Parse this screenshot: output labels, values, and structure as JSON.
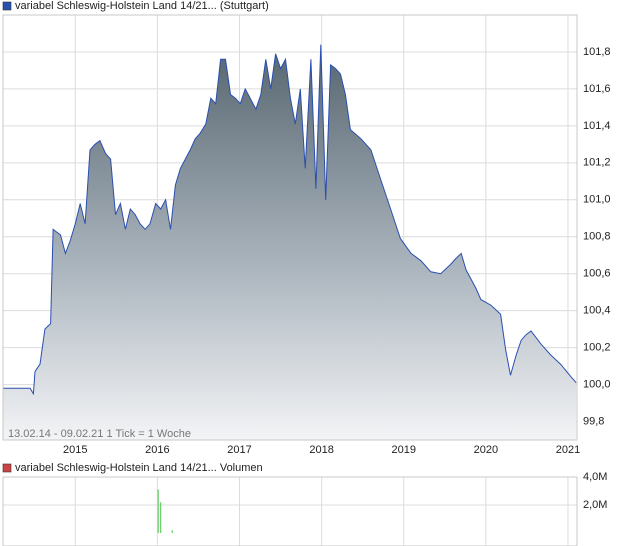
{
  "chart_data": [
    {
      "type": "area",
      "note": "13.02.14 - 09.02.21   1 Tick = 1 Woche",
      "xlim": [
        2014.12,
        2021.11
      ],
      "xticks": [
        2015,
        2016,
        2017,
        2018,
        2019,
        2020,
        2021
      ],
      "ylim": [
        99.7,
        102.0
      ],
      "yticks": [
        {
          "value": 99.8,
          "label": "99,8"
        },
        {
          "value": 100.0,
          "label": "100,0"
        },
        {
          "value": 100.2,
          "label": "100,2"
        },
        {
          "value": 100.4,
          "label": "100,4"
        },
        {
          "value": 100.6,
          "label": "100,6"
        },
        {
          "value": 100.8,
          "label": "100,8"
        },
        {
          "value": 101.0,
          "label": "101,0"
        },
        {
          "value": 101.2,
          "label": "101,2"
        },
        {
          "value": 101.4,
          "label": "101,4"
        },
        {
          "value": 101.6,
          "label": "101,6"
        },
        {
          "value": 101.8,
          "label": "101,8"
        }
      ],
      "grid": true,
      "series": [
        {
          "name": "variabel Schleswig-Holstein Land 14/21... (Stuttgart)",
          "color": "#2a4fb0",
          "x": [
            2014.12,
            2014.45,
            2014.49,
            2014.51,
            2014.57,
            2014.63,
            2014.7,
            2014.73,
            2014.82,
            2014.88,
            2014.94,
            2015.0,
            2015.06,
            2015.12,
            2015.18,
            2015.24,
            2015.3,
            2015.37,
            2015.43,
            2015.49,
            2015.55,
            2015.61,
            2015.67,
            2015.73,
            2015.79,
            2015.85,
            2015.91,
            2015.98,
            2016.04,
            2016.1,
            2016.16,
            2016.22,
            2016.28,
            2016.34,
            2016.4,
            2016.46,
            2016.52,
            2016.59,
            2016.65,
            2016.71,
            2016.77,
            2016.83,
            2016.89,
            2016.95,
            2017.01,
            2017.07,
            2017.13,
            2017.2,
            2017.26,
            2017.32,
            2017.38,
            2017.44,
            2017.5,
            2017.56,
            2017.62,
            2017.68,
            2017.74,
            2017.8,
            2017.87,
            2017.93,
            2017.99,
            2018.05,
            2018.11,
            2018.17,
            2018.23,
            2018.29,
            2018.35,
            2018.48,
            2018.6,
            2018.72,
            2018.84,
            2018.96,
            2019.09,
            2019.21,
            2019.33,
            2019.45,
            2019.57,
            2019.63,
            2019.7,
            2019.76,
            2019.82,
            2019.88,
            2019.94,
            2020.06,
            2020.18,
            2020.24,
            2020.3,
            2020.37,
            2020.43,
            2020.49,
            2020.55,
            2020.67,
            2020.79,
            2020.91,
            2021.04,
            2021.1
          ],
          "values": [
            99.98,
            99.98,
            99.95,
            100.07,
            100.11,
            100.3,
            100.33,
            100.84,
            100.81,
            100.71,
            100.78,
            100.87,
            100.98,
            100.87,
            101.27,
            101.3,
            101.32,
            101.25,
            101.22,
            100.92,
            100.98,
            100.84,
            100.95,
            100.92,
            100.87,
            100.84,
            100.87,
            100.98,
            100.95,
            101.0,
            100.84,
            101.08,
            101.17,
            101.22,
            101.27,
            101.33,
            101.36,
            101.41,
            101.55,
            101.52,
            101.76,
            101.76,
            101.57,
            101.55,
            101.52,
            101.6,
            101.55,
            101.49,
            101.57,
            101.76,
            101.6,
            101.79,
            101.71,
            101.76,
            101.55,
            101.41,
            101.6,
            101.17,
            101.76,
            101.06,
            101.84,
            101.0,
            101.73,
            101.71,
            101.68,
            101.57,
            101.38,
            101.33,
            101.27,
            101.11,
            100.95,
            100.79,
            100.71,
            100.67,
            100.61,
            100.6,
            100.65,
            100.68,
            100.71,
            100.62,
            100.57,
            100.52,
            100.46,
            100.43,
            100.38,
            100.19,
            100.05,
            100.16,
            100.24,
            100.27,
            100.29,
            100.22,
            100.16,
            100.11,
            100.04,
            100.01
          ]
        }
      ]
    },
    {
      "type": "bar",
      "xlim": [
        2014.12,
        2021.11
      ],
      "xticks": [
        2015,
        2016,
        2017,
        2018,
        2019,
        2020,
        2021
      ],
      "ylim": [
        0,
        4000000
      ],
      "yticks": [
        {
          "value": 2000000,
          "label": "2,0M"
        },
        {
          "value": 4000000,
          "label": "4,0M"
        }
      ],
      "grid": true,
      "series": [
        {
          "name": "variabel Schleswig-Holstein Land 14/21... Volumen",
          "color": "#cc4444",
          "bar_color": "#66cc66",
          "x": [
            2016.01,
            2016.04,
            2016.18
          ],
          "values": [
            3100000,
            2200000,
            200000
          ]
        }
      ]
    }
  ]
}
